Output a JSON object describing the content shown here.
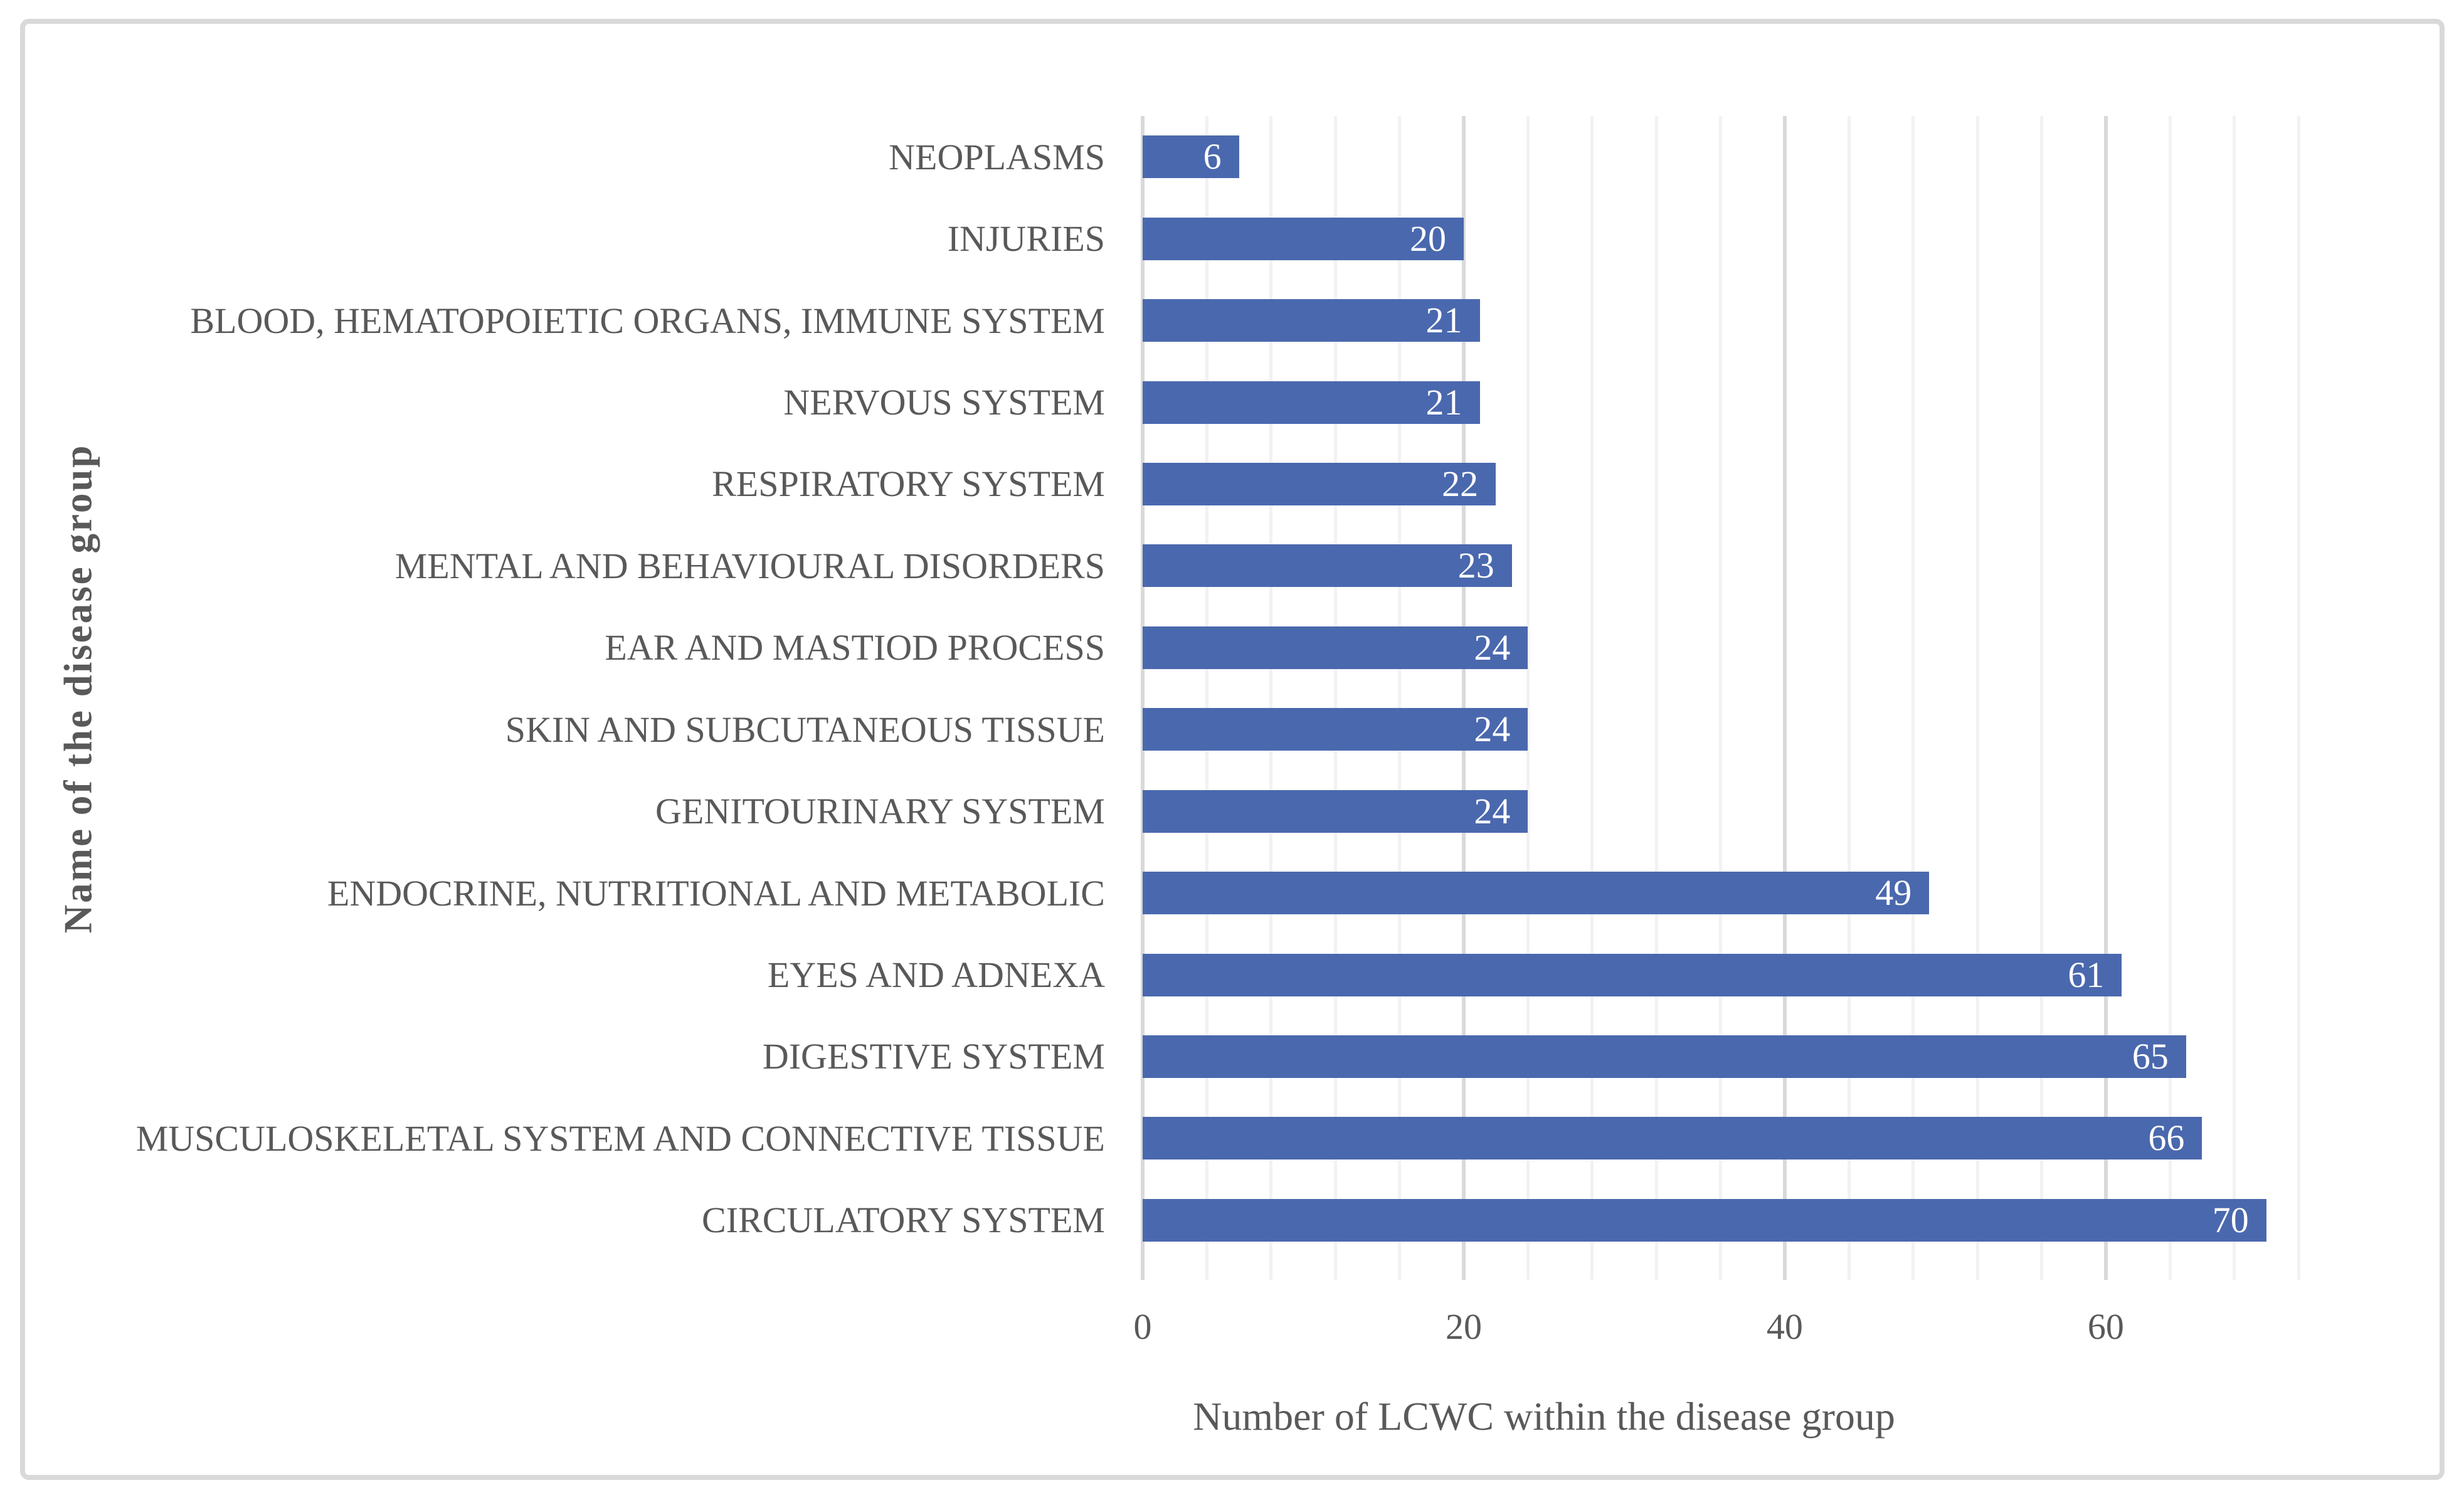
{
  "figure": {
    "background": "#FFFFFF",
    "border_color": "#D9D9D9"
  },
  "chart_data": {
    "type": "bar",
    "orientation": "horizontal",
    "categories": [
      "NEOPLASMS",
      "INJURIES",
      "BLOOD, HEMATOPOIETIC ORGANS, IMMUNE SYSTEM",
      "NERVOUS SYSTEM",
      "RESPIRATORY SYSTEM",
      "MENTAL AND BEHAVIOURAL DISORDERS",
      "EAR AND MASTIOD PROCESS",
      "SKIN AND SUBCUTANEOUS TISSUE",
      "GENITOURINARY SYSTEM",
      "ENDOCRINE, NUTRITIONAL AND METABOLIC",
      "EYES AND ADNEXA",
      "DIGESTIVE SYSTEM",
      "MUSCULOSKELETAL SYSTEM AND CONNECTIVE TISSUE",
      "CIRCULATORY SYSTEM"
    ],
    "values": [
      6,
      20,
      21,
      21,
      22,
      23,
      24,
      24,
      24,
      49,
      61,
      65,
      66,
      70
    ],
    "xlabel": "Number of LCWC within the disease group",
    "ylabel": "Name of the disease group",
    "xlim": [
      0,
      72
    ],
    "major_unit": 20,
    "minor_unit": 4,
    "x_major_tick_labels": [
      "0",
      "20",
      "40",
      "60"
    ],
    "grid": "vertical major and minor gridlines shown",
    "legend": "none",
    "data_labels": "inside end, white",
    "bar_color": "#4A68AE",
    "data_label_color": "#FFFFFF",
    "axis_text_color": "#595959",
    "major_grid_color": "#D9D9D9",
    "minor_grid_color": "#F2F2F2"
  }
}
